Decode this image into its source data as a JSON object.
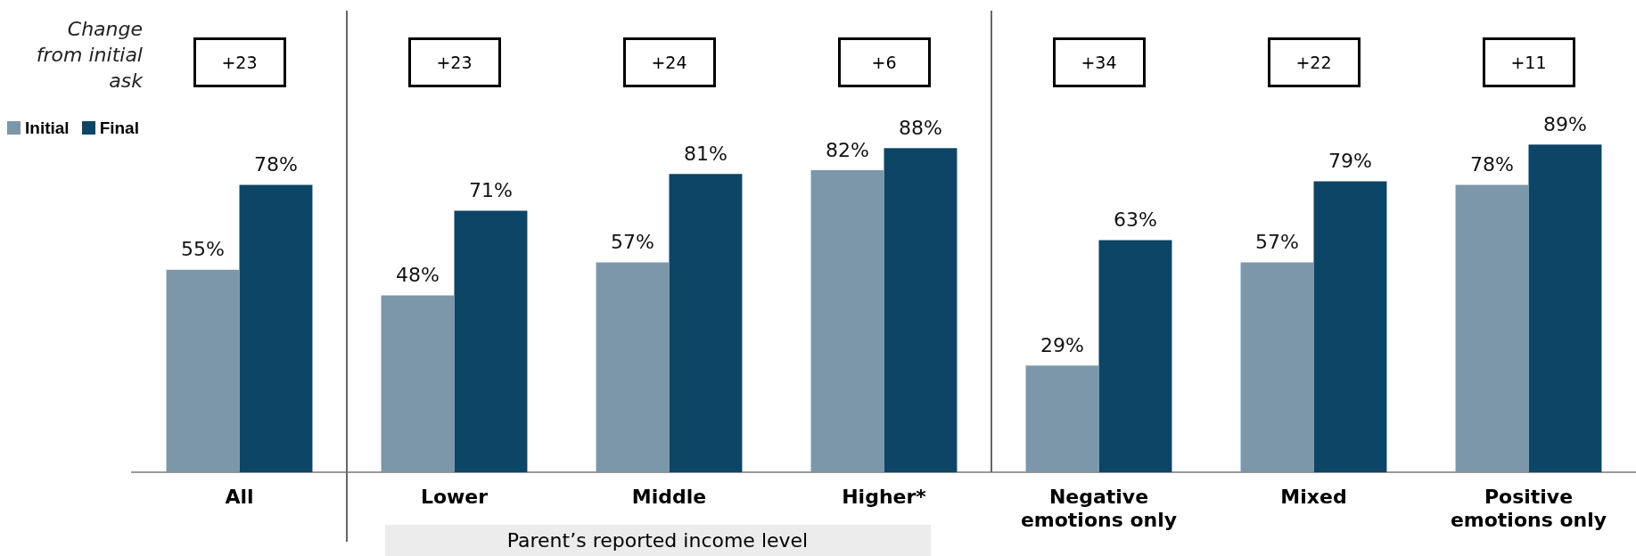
{
  "chart_data": {
    "type": "bar",
    "categories": [
      "All",
      "Lower",
      "Middle",
      "Higher*",
      "Negative emotions only",
      "Mixed",
      "Positive emotions only"
    ],
    "series": [
      {
        "name": "Initial",
        "color": "#7b97a9",
        "values": [
          55,
          48,
          57,
          82,
          29,
          57,
          78
        ],
        "value_labels": [
          "55%",
          "48%",
          "57%",
          "82%",
          "29%",
          "57%",
          "78%"
        ]
      },
      {
        "name": "Final",
        "color": "#0c4566",
        "values": [
          78,
          71,
          81,
          88,
          63,
          79,
          89
        ],
        "value_labels": [
          "78%",
          "71%",
          "81%",
          "88%",
          "63%",
          "79%",
          "89%"
        ]
      }
    ],
    "tick_labels": "x",
    "grid": false,
    "legend": "top left",
    "annotations": [
      "Change from initial ask",
      "+23",
      "+23",
      "+24",
      "+6",
      "+34",
      "+22",
      "+11",
      "Parent’s reported income level"
    ]
  }
}
